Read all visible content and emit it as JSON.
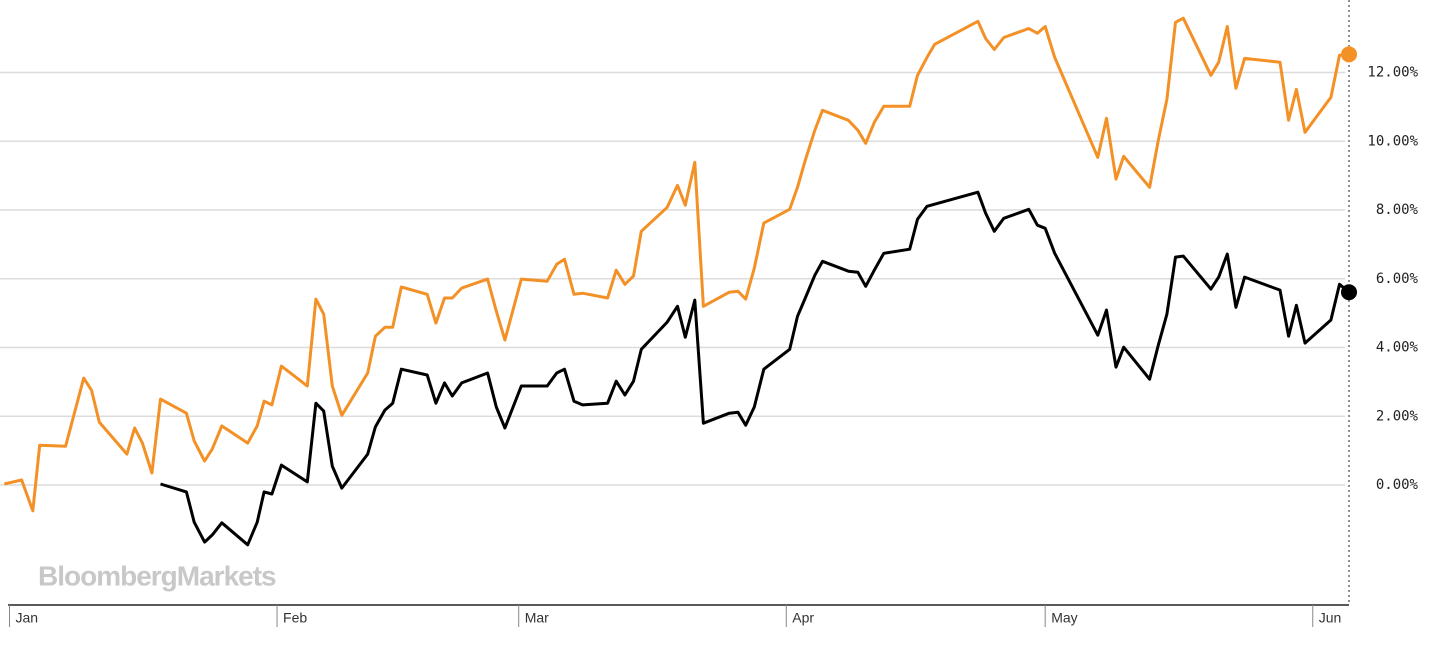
{
  "chart_data": {
    "type": "line",
    "watermark": "BloombergMarkets",
    "xlim": [
      -1.1,
      155.2
    ],
    "xticks": [
      {
        "value": 0,
        "label": "Jan"
      },
      {
        "value": 31,
        "label": "Feb"
      },
      {
        "value": 59,
        "label": "Mar"
      },
      {
        "value": 90,
        "label": "Apr"
      },
      {
        "value": 120,
        "label": "May"
      },
      {
        "value": 151,
        "label": "Jun"
      }
    ],
    "ylim": [
      -3.49,
      14.11
    ],
    "yticks": [
      {
        "value": 0,
        "label": "0.00%"
      },
      {
        "value": 2,
        "label": "2.00%"
      },
      {
        "value": 4,
        "label": "4.00%"
      },
      {
        "value": 6,
        "label": "6.00%"
      },
      {
        "value": 8,
        "label": "8.00%"
      },
      {
        "value": 10,
        "label": "10.00%"
      },
      {
        "value": 12,
        "label": "12.00%"
      }
    ],
    "grid": true,
    "series": [
      {
        "color": "#f39127",
        "x": [
          -0.6,
          1.4,
          2.7,
          3.5,
          6.5,
          8.6,
          9.5,
          10.4,
          13.6,
          14.5,
          15.4,
          16.5,
          17.5,
          20.5,
          21.4,
          22.6,
          23.5,
          24.6,
          27.6,
          28.7,
          29.5,
          30.4,
          31.5,
          34.5,
          35.5,
          36.4,
          37.4,
          38.5,
          41.5,
          42.4,
          43.5,
          44.4,
          45.4,
          48.4,
          49.4,
          50.4,
          51.3,
          52.4,
          55.4,
          56.4,
          57.4,
          59.3,
          62.3,
          63.4,
          64.3,
          65.4,
          66.4,
          69.3,
          70.3,
          71.3,
          72.3,
          73.2,
          76.2,
          77.4,
          78.3,
          79.4,
          80.4,
          83.4,
          84.4,
          85.3,
          86.3,
          87.4,
          90.4,
          91.3,
          92.2,
          93.3,
          94.2,
          97.2,
          98.3,
          99.2,
          100.2,
          101.3,
          104.3,
          105.2,
          106.3,
          107.2,
          112.2,
          113.1,
          114.1,
          115.2,
          118.1,
          119.1,
          120,
          121.1,
          126.1,
          127.1,
          128.2,
          129.1,
          132.1,
          133.1,
          134.1,
          135.1,
          136,
          139.2,
          140.1,
          141.1,
          142.1,
          143.1,
          147.2,
          148.2,
          149.1,
          150.1,
          153.1,
          154.1,
          155.2
        ],
        "values": [
          0.03,
          0.15,
          -0.75,
          1.16,
          1.13,
          3.11,
          2.76,
          1.83,
          0.9,
          1.66,
          1.22,
          0.35,
          2.5,
          2.09,
          1.28,
          0.7,
          1.05,
          1.72,
          1.22,
          1.72,
          2.44,
          2.33,
          3.46,
          2.88,
          5.41,
          4.97,
          2.88,
          2.03,
          3.26,
          4.33,
          4.59,
          4.59,
          5.76,
          5.55,
          4.71,
          5.44,
          5.44,
          5.73,
          5.99,
          5.06,
          4.22,
          5.99,
          5.93,
          6.42,
          6.57,
          5.55,
          5.58,
          5.44,
          6.25,
          5.84,
          6.08,
          7.38,
          8.08,
          8.72,
          8.14,
          9.39,
          5.2,
          5.61,
          5.64,
          5.41,
          6.31,
          7.62,
          8.02,
          8.66,
          9.45,
          10.32,
          10.9,
          10.61,
          10.32,
          9.94,
          10.55,
          11.02,
          11.02,
          11.92,
          12.44,
          12.82,
          13.49,
          12.99,
          12.67,
          13.02,
          13.28,
          13.14,
          13.34,
          12.44,
          9.53,
          10.67,
          8.9,
          9.56,
          8.66,
          10.03,
          11.22,
          13.46,
          13.58,
          11.92,
          12.3,
          13.34,
          11.54,
          12.41,
          12.3,
          10.61,
          11.51,
          10.26,
          11.28,
          12.5,
          12.53
        ]
      },
      {
        "color": "#000000",
        "x": [
          17.5,
          20.5,
          21.4,
          22.6,
          23.5,
          24.6,
          27.6,
          28.7,
          29.5,
          30.4,
          31.5,
          34.5,
          35.5,
          36.4,
          37.4,
          38.5,
          41.5,
          42.4,
          43.5,
          44.4,
          45.4,
          48.4,
          49.4,
          50.4,
          51.3,
          52.4,
          55.4,
          56.4,
          57.4,
          59.3,
          62.3,
          63.4,
          64.3,
          65.4,
          66.4,
          69.3,
          70.3,
          71.3,
          72.3,
          73.2,
          76.2,
          77.4,
          78.3,
          79.4,
          80.4,
          83.4,
          84.4,
          85.3,
          86.3,
          87.4,
          90.4,
          91.3,
          92.2,
          93.3,
          94.2,
          97.2,
          98.3,
          99.2,
          100.2,
          101.3,
          104.3,
          105.2,
          106.3,
          112.2,
          113.1,
          114.1,
          115.2,
          118.1,
          119.1,
          120,
          121.1,
          126.1,
          127.1,
          128.2,
          129.1,
          132.1,
          133.1,
          134.1,
          135.1,
          136,
          139.2,
          140.1,
          141.1,
          142.1,
          143.1,
          147.2,
          148.2,
          149.1,
          150.1,
          153.1,
          154.1,
          155.2
        ],
        "values": [
          0.03,
          -0.2,
          -1.08,
          -1.66,
          -1.45,
          -1.1,
          -1.74,
          -1.08,
          -0.2,
          -0.26,
          0.58,
          0.09,
          2.38,
          2.15,
          0.55,
          -0.09,
          0.9,
          1.69,
          2.18,
          2.38,
          3.37,
          3.2,
          2.38,
          2.97,
          2.59,
          2.97,
          3.26,
          2.27,
          1.66,
          2.88,
          2.88,
          3.26,
          3.37,
          2.44,
          2.33,
          2.38,
          3.02,
          2.62,
          3.02,
          3.95,
          4.74,
          5.2,
          4.3,
          5.38,
          1.8,
          2.09,
          2.12,
          1.74,
          2.27,
          3.37,
          3.95,
          4.91,
          5.44,
          6.1,
          6.51,
          6.22,
          6.19,
          5.78,
          6.25,
          6.74,
          6.86,
          7.73,
          8.11,
          8.52,
          7.91,
          7.38,
          7.76,
          8.02,
          7.56,
          7.47,
          6.74,
          4.36,
          5.09,
          3.43,
          4.01,
          3.08,
          4.07,
          4.97,
          6.63,
          6.66,
          5.7,
          6.05,
          6.72,
          5.17,
          6.05,
          5.67,
          4.33,
          5.23,
          4.13,
          4.8,
          5.84,
          5.61
        ]
      }
    ]
  }
}
